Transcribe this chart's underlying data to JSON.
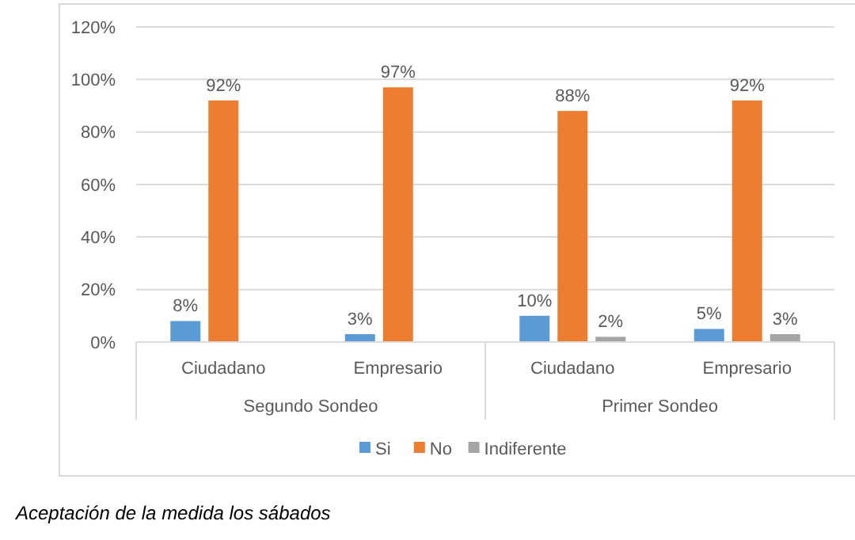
{
  "chart_data": {
    "type": "bar",
    "title": "Aceptación de la medida los sábados",
    "categories": [
      "Ciudadano",
      "Empresario",
      "Ciudadano",
      "Empresario"
    ],
    "annotations": [
      "Segundo Sondeo",
      "Primer Sondeo"
    ],
    "series": [
      {
        "name": "Si",
        "color": "#5b9bd5",
        "values": [
          8,
          3,
          10,
          5
        ],
        "value_labels": [
          "8%",
          "3%",
          "10%",
          "5%"
        ]
      },
      {
        "name": "No",
        "color": "#ed7d31",
        "values": [
          92,
          97,
          88,
          92
        ],
        "value_labels": [
          "92%",
          "97%",
          "88%",
          "92%"
        ]
      },
      {
        "name": "Indiferente",
        "color": "#a5a5a5",
        "values": [
          null,
          null,
          2,
          3
        ],
        "value_labels": [
          null,
          null,
          "2%",
          "3%"
        ]
      }
    ],
    "ylim": [
      0,
      120
    ],
    "yticks": [
      {
        "value": 0,
        "label": "0%"
      },
      {
        "value": 20,
        "label": "20%"
      },
      {
        "value": 40,
        "label": "40%"
      },
      {
        "value": 60,
        "label": "60%"
      },
      {
        "value": 80,
        "label": "80%"
      },
      {
        "value": 100,
        "label": "100%"
      },
      {
        "value": 120,
        "label": "120%"
      }
    ],
    "grid": "y",
    "legend": "bottom"
  }
}
